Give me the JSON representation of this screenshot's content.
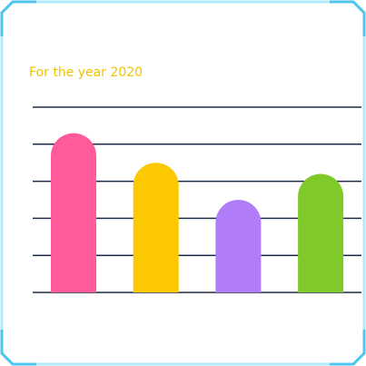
{
  "chart_data": {
    "type": "bar",
    "subtitle": "For the year 2020",
    "categories": [
      null,
      null,
      null,
      null
    ],
    "values": [
      4.3,
      3.5,
      2.5,
      3.2
    ],
    "colors": [
      "#ff5a9a",
      "#fcc800",
      "#b07cf7",
      "#80c92a"
    ],
    "ylim": [
      0,
      5
    ],
    "yticks": [
      0,
      1,
      2,
      3,
      4,
      5
    ],
    "grid": true
  }
}
